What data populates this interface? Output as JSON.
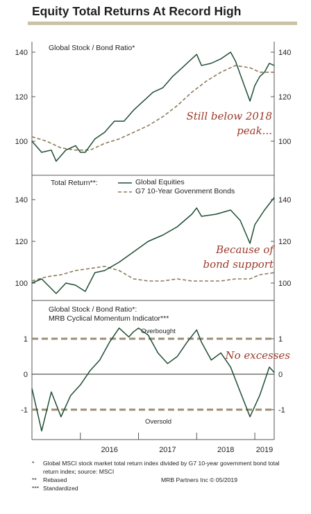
{
  "title": "Equity Total Returns At Record High",
  "source": "MRB Partners Inc © 05/2019",
  "footnotes": [
    {
      "mark": "*",
      "text": "Global MSCI stock market total return index divided by G7 10-year government bond total return index; source: MSCI"
    },
    {
      "mark": "**",
      "text": "Rebased"
    },
    {
      "mark": "***",
      "text": "Standardized"
    }
  ],
  "colors": {
    "equity": "#1f4d34",
    "bond": "#8c7a5a",
    "annotation": "#9b3b2b",
    "band": "#9c8d74",
    "rule": "#c8c2a6"
  },
  "chart_data": [
    {
      "type": "line",
      "title": "Global Stock / Bond Ratio*",
      "annotation": "Still below 2018 peak...",
      "yticks": [
        100,
        120,
        140
      ],
      "ylim": [
        90,
        142
      ],
      "series": [
        {
          "name": "",
          "style": "solid",
          "x": [
            "2015-03",
            "2015-05",
            "2015-07",
            "2015-08",
            "2015-10",
            "2015-12",
            "2016-01",
            "2016-02",
            "2016-04",
            "2016-06",
            "2016-08",
            "2016-10",
            "2016-12",
            "2017-02",
            "2017-04",
            "2017-06",
            "2017-08",
            "2017-10",
            "2017-12",
            "2018-01",
            "2018-02",
            "2018-04",
            "2018-06",
            "2018-08",
            "2018-09",
            "2018-10",
            "2018-11",
            "2018-12",
            "2019-01",
            "2019-02",
            "2019-03",
            "2019-04",
            "2019-05"
          ],
          "values": [
            100,
            95,
            96,
            91,
            96,
            98,
            95,
            95,
            101,
            104,
            109,
            109,
            114,
            118,
            122,
            124,
            129,
            133,
            137,
            139,
            134,
            135,
            137,
            140,
            136,
            130,
            124,
            118,
            125,
            129,
            131,
            135,
            134
          ]
        },
        {
          "name": "",
          "style": "dashed",
          "x": [
            "2015-03",
            "2015-06",
            "2015-09",
            "2015-12",
            "2016-03",
            "2016-06",
            "2016-09",
            "2016-12",
            "2017-03",
            "2017-06",
            "2017-09",
            "2017-12",
            "2018-03",
            "2018-06",
            "2018-09",
            "2018-12",
            "2019-02",
            "2019-05"
          ],
          "values": [
            102,
            100,
            97,
            96,
            96,
            99,
            101,
            104,
            107,
            111,
            116,
            122,
            127,
            131,
            134,
            133,
            131,
            131
          ]
        }
      ]
    },
    {
      "type": "line",
      "title": "Total Return**:",
      "annotation": "Because of bond support",
      "yticks": [
        100,
        120,
        140
      ],
      "ylim": [
        94,
        146
      ],
      "series": [
        {
          "name": "Global Equities",
          "style": "solid",
          "x": [
            "2015-03",
            "2015-05",
            "2015-08",
            "2015-10",
            "2015-12",
            "2016-02",
            "2016-04",
            "2016-06",
            "2016-09",
            "2016-12",
            "2017-03",
            "2017-06",
            "2017-09",
            "2017-12",
            "2018-01",
            "2018-02",
            "2018-05",
            "2018-08",
            "2018-10",
            "2018-12",
            "2019-01",
            "2019-03",
            "2019-05"
          ],
          "values": [
            100,
            102,
            95,
            100,
            99,
            96,
            105,
            106,
            110,
            115,
            120,
            123,
            127,
            133,
            136,
            132,
            133,
            135,
            130,
            119,
            128,
            135,
            141
          ]
        },
        {
          "name": "G7 10-Year Govenment Bonds",
          "style": "dashed",
          "x": [
            "2015-03",
            "2015-06",
            "2015-09",
            "2015-12",
            "2016-03",
            "2016-06",
            "2016-09",
            "2016-12",
            "2017-03",
            "2017-06",
            "2017-09",
            "2017-12",
            "2018-03",
            "2018-06",
            "2018-09",
            "2018-12",
            "2019-02",
            "2019-05"
          ],
          "values": [
            101,
            103,
            104,
            106,
            107,
            108,
            106,
            102,
            101,
            101,
            102,
            101,
            101,
            101,
            102,
            102,
            104,
            105
          ]
        }
      ]
    },
    {
      "type": "line",
      "title": "Global Stock / Bond Ratio*:",
      "subtitle": "MRB Cyclical Momentum Indicator***",
      "annotation": "No excesses",
      "yticks": [
        -1,
        0,
        1
      ],
      "ylim": [
        -1.55,
        1.5
      ],
      "bands": [
        {
          "value": 1,
          "label": "Overbought"
        },
        {
          "value": -1,
          "label": "Oversold"
        }
      ],
      "series": [
        {
          "name": "",
          "style": "solid",
          "x": [
            "2015-03",
            "2015-05",
            "2015-07",
            "2015-09",
            "2015-11",
            "2016-01",
            "2016-03",
            "2016-05",
            "2016-07",
            "2016-09",
            "2016-11",
            "2016-12",
            "2017-01",
            "2017-03",
            "2017-05",
            "2017-07",
            "2017-09",
            "2017-11",
            "2018-01",
            "2018-02",
            "2018-04",
            "2018-06",
            "2018-08",
            "2018-10",
            "2018-12",
            "2019-02",
            "2019-04",
            "2019-05"
          ],
          "values": [
            -0.4,
            -1.6,
            -0.5,
            -1.2,
            -0.6,
            -0.3,
            0.1,
            0.4,
            0.9,
            1.3,
            1.05,
            1.2,
            1.3,
            1.1,
            0.6,
            0.3,
            0.5,
            0.9,
            1.25,
            0.9,
            0.4,
            0.6,
            0.2,
            -0.5,
            -1.2,
            -0.6,
            0.2,
            0.05
          ]
        }
      ]
    }
  ],
  "x_axis": {
    "range": [
      "2015-03",
      "2019-05"
    ],
    "labels": [
      "2016",
      "2017",
      "2018",
      "2019"
    ]
  }
}
